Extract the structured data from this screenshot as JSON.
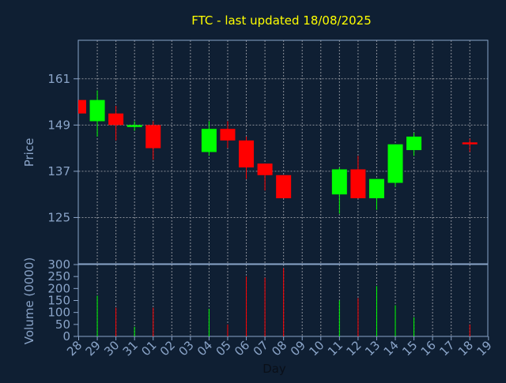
{
  "chart_data": {
    "type": "candlestick",
    "title": "FTC - last updated 18/08/2025",
    "xlabel": "Day",
    "ylabel_price": "Price",
    "ylabel_volume": "Volume (0000)",
    "price_ylim": [
      113,
      171
    ],
    "price_ticks": [
      125,
      137,
      149,
      161
    ],
    "volume_ylim": [
      0,
      300
    ],
    "volume_ticks": [
      0,
      50,
      100,
      150,
      200,
      250,
      300
    ],
    "grid": true,
    "x_ticks": [
      "28",
      "29",
      "30",
      "31",
      "01",
      "02",
      "03",
      "04",
      "05",
      "06",
      "07",
      "08",
      "09",
      "10",
      "11",
      "12",
      "13",
      "14",
      "15",
      "16",
      "17",
      "18",
      "19"
    ],
    "candles": [
      {
        "day": "28",
        "open": 155.5,
        "high": 155.5,
        "low": 152.0,
        "close": 152.0
      },
      {
        "day": "29",
        "open": 150.0,
        "high": 158.0,
        "low": 146.0,
        "close": 155.5
      },
      {
        "day": "30",
        "open": 152.0,
        "high": 154.0,
        "low": 145.0,
        "close": 149.0
      },
      {
        "day": "31",
        "open": 148.5,
        "high": 150.0,
        "low": 147.5,
        "close": 149.0
      },
      {
        "day": "01",
        "open": 149.0,
        "high": 150.0,
        "low": 140.0,
        "close": 143.0
      },
      {
        "day": "04",
        "open": 142.0,
        "high": 150.0,
        "low": 141.0,
        "close": 148.0
      },
      {
        "day": "05",
        "open": 148.0,
        "high": 150.0,
        "low": 143.0,
        "close": 145.0
      },
      {
        "day": "06",
        "open": 145.0,
        "high": 146.0,
        "low": 135.0,
        "close": 138.0
      },
      {
        "day": "07",
        "open": 139.0,
        "high": 139.0,
        "low": 132.0,
        "close": 136.0
      },
      {
        "day": "08",
        "open": 136.0,
        "high": 136.0,
        "low": 130.0,
        "close": 130.0
      },
      {
        "day": "11",
        "open": 131.0,
        "high": 138.0,
        "low": 126.0,
        "close": 137.5
      },
      {
        "day": "12",
        "open": 137.5,
        "high": 141.0,
        "low": 130.0,
        "close": 130.0
      },
      {
        "day": "13",
        "open": 130.0,
        "high": 135.0,
        "low": 127.0,
        "close": 135.0
      },
      {
        "day": "14",
        "open": 134.0,
        "high": 144.0,
        "low": 133.0,
        "close": 144.0
      },
      {
        "day": "15",
        "open": 142.5,
        "high": 147.0,
        "low": 141.0,
        "close": 146.0
      },
      {
        "day": "18",
        "open": 144.5,
        "high": 145.5,
        "low": 142.0,
        "close": 144.0
      }
    ],
    "volume": [
      {
        "day": "29",
        "value": 170
      },
      {
        "day": "30",
        "value": 120
      },
      {
        "day": "31",
        "value": 40
      },
      {
        "day": "01",
        "value": 120
      },
      {
        "day": "04",
        "value": 115
      },
      {
        "day": "05",
        "value": 50
      },
      {
        "day": "06",
        "value": 250
      },
      {
        "day": "07",
        "value": 245
      },
      {
        "day": "08",
        "value": 285
      },
      {
        "day": "11",
        "value": 150
      },
      {
        "day": "12",
        "value": 160
      },
      {
        "day": "13",
        "value": 210
      },
      {
        "day": "14",
        "value": 130
      },
      {
        "day": "15",
        "value": 80
      },
      {
        "day": "18",
        "value": 50
      }
    ],
    "colors": {
      "background": "#0f1f33",
      "up": "#00ff00",
      "down": "#ff0000",
      "axis": "#8aa4c8",
      "grid": "#8a8f98",
      "title": "#ffff00",
      "label": "#8aa4c8"
    }
  }
}
